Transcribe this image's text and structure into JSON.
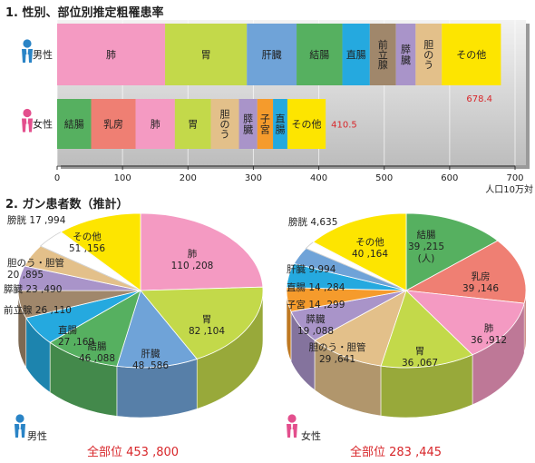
{
  "section1_title": "1. 性別、部位別推定粗罹患率",
  "section2_title": "2. ガン患者数（推計）",
  "colors": {
    "pink": "#f49ac2",
    "lime": "#c3d94a",
    "blue": "#6fa3d8",
    "green": "#56b060",
    "cyan": "#25a9df",
    "brown": "#a0876b",
    "purple": "#a994c9",
    "tan": "#e3c08a",
    "yellow": "#fde500",
    "salmon": "#ef7f73",
    "orange": "#f59b2c"
  },
  "chart_data": [
    {
      "type": "bar",
      "orientation": "horizontal",
      "stacked": true,
      "title": "1. 性別、部位別推定粗罹患率",
      "xlabel": "人口10万対",
      "xlim": [
        0,
        700
      ],
      "xticks": [
        0,
        100,
        200,
        300,
        400,
        500,
        600,
        700
      ],
      "categories": [
        "男性",
        "女性"
      ],
      "bars": [
        {
          "name": "男性",
          "total": "678.4",
          "segments": [
            {
              "label": "肺",
              "value": 165,
              "color": "#f49ac2"
            },
            {
              "label": "胃",
              "value": 125,
              "color": "#c3d94a"
            },
            {
              "label": "肝臓",
              "value": 76,
              "color": "#6fa3d8"
            },
            {
              "label": "結腸",
              "value": 70,
              "color": "#56b060"
            },
            {
              "label": "直腸",
              "value": 42,
              "color": "#25a9df"
            },
            {
              "label": "前立腺",
              "value": 40,
              "color": "#a0876b"
            },
            {
              "label": "膵臓",
              "value": 30,
              "color": "#a994c9"
            },
            {
              "label": "胆のう",
              "value": 40,
              "color": "#e3c08a"
            },
            {
              "label": "その他",
              "value": 90.4,
              "color": "#fde500"
            }
          ]
        },
        {
          "name": "女性",
          "total": "410.5",
          "segments": [
            {
              "label": "結腸",
              "value": 52,
              "color": "#56b060"
            },
            {
              "label": "乳房",
              "value": 68,
              "color": "#ef7f73"
            },
            {
              "label": "肺",
              "value": 60,
              "color": "#f49ac2"
            },
            {
              "label": "胃",
              "value": 55,
              "color": "#c3d94a"
            },
            {
              "label": "胆のう",
              "value": 43,
              "color": "#e3c08a"
            },
            {
              "label": "膵臓",
              "value": 28,
              "color": "#a994c9"
            },
            {
              "label": "子宮",
              "value": 24,
              "color": "#f59b2c"
            },
            {
              "label": "直腸",
              "value": 22,
              "color": "#25a9df"
            },
            {
              "label": "その他",
              "value": 58.5,
              "color": "#fde500"
            }
          ]
        }
      ]
    },
    {
      "type": "pie",
      "title": "男性",
      "total_label": "全部位 453 ,800",
      "slices": [
        {
          "label": "肺",
          "display": "110 ,208",
          "value": 110208,
          "color": "#f49ac2"
        },
        {
          "label": "胃",
          "display": "82 ,104",
          "value": 82104,
          "color": "#c3d94a"
        },
        {
          "label": "肝臓",
          "display": "48 ,586",
          "value": 48586,
          "color": "#6fa3d8"
        },
        {
          "label": "結腸",
          "display": "46 ,088",
          "value": 46088,
          "color": "#56b060"
        },
        {
          "label": "直腸",
          "display": "27 ,169",
          "value": 27169,
          "color": "#25a9df"
        },
        {
          "label": "前立腺",
          "display": "26 ,110",
          "value": 26110,
          "color": "#a0876b"
        },
        {
          "label": "膵臓",
          "display": "23 ,490",
          "value": 23490,
          "color": "#a994c9"
        },
        {
          "label": "胆のう・胆管",
          "display": "20 ,895",
          "value": 20895,
          "color": "#e3c08a"
        },
        {
          "label": "膀胱",
          "display": "17 ,994",
          "value": 17994,
          "color": "#ffffff"
        },
        {
          "label": "その他",
          "display": "51 ,156",
          "value": 51156,
          "color": "#fde500"
        }
      ]
    },
    {
      "type": "pie",
      "title": "女性",
      "total_label": "全部位 283 ,445",
      "slices": [
        {
          "label": "結腸",
          "display": "39 ,215",
          "unit": "(人)",
          "value": 39215,
          "color": "#56b060"
        },
        {
          "label": "乳房",
          "display": "39 ,146",
          "value": 39146,
          "color": "#ef7f73"
        },
        {
          "label": "肺",
          "display": "36 ,912",
          "value": 36912,
          "color": "#f49ac2"
        },
        {
          "label": "胃",
          "display": "36 ,067",
          "value": 36067,
          "color": "#c3d94a"
        },
        {
          "label": "胆のう・胆管",
          "display": "29 ,641",
          "value": 29641,
          "color": "#e3c08a"
        },
        {
          "label": "膵臓",
          "display": "19 ,088",
          "value": 19088,
          "color": "#a994c9"
        },
        {
          "label": "子宮",
          "display": "14 ,299",
          "value": 14299,
          "color": "#f59b2c"
        },
        {
          "label": "直腸",
          "display": "14 ,284",
          "value": 14284,
          "color": "#25a9df"
        },
        {
          "label": "肝臓",
          "display": "9,994",
          "value": 9994,
          "color": "#6fa3d8"
        },
        {
          "label": "膀胱",
          "display": "4,635",
          "value": 4635,
          "color": "#ffffff"
        },
        {
          "label": "その他",
          "display": "40 ,164",
          "value": 40164,
          "color": "#fde500"
        }
      ]
    }
  ]
}
